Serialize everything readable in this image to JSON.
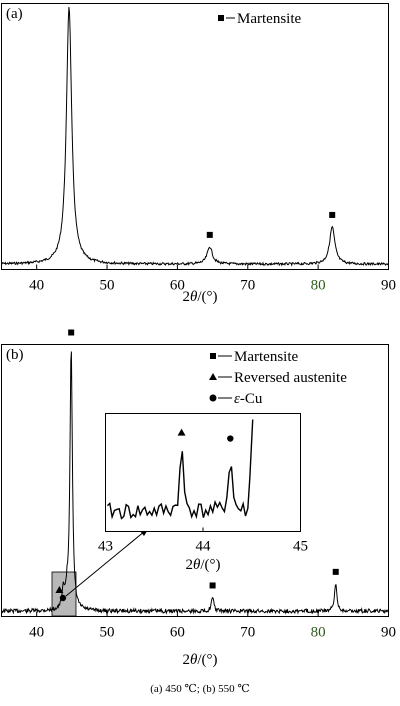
{
  "caption": "(a)  450 ℃; (b) 550 ℃",
  "colors": {
    "axis": "#000000",
    "green_tick": "#2e5a1c",
    "inset_box": "#b8b8b8"
  },
  "chart_data": [
    {
      "type": "line",
      "panel_label": "(a)",
      "xlabel_prefix": "2",
      "xlabel_theta": "θ",
      "xlabel_suffix": "/(°)",
      "xlim": [
        35,
        90
      ],
      "x_ticks": [
        40,
        50,
        60,
        70,
        80,
        90
      ],
      "ylim": [
        0,
        1
      ],
      "legend_position": "top-right",
      "legend": [
        {
          "marker": "square",
          "label": "Martensite"
        }
      ],
      "peaks": [
        {
          "x": 44.6,
          "height": 0.97,
          "marker": "square"
        },
        {
          "x": 64.6,
          "height": 0.065,
          "marker": "square"
        },
        {
          "x": 82.0,
          "height": 0.14,
          "marker": "square"
        }
      ],
      "baseline": 0.02
    },
    {
      "type": "line",
      "panel_label": "(b)",
      "xlabel_prefix": "2",
      "xlabel_theta": "θ",
      "xlabel_suffix": "/(°)",
      "xlim": [
        35,
        90
      ],
      "x_ticks": [
        40,
        50,
        60,
        70,
        80,
        90
      ],
      "ylim": [
        0,
        1
      ],
      "legend_position": "top-right",
      "legend": [
        {
          "marker": "square",
          "label": "Martensite"
        },
        {
          "marker": "triangle",
          "label": "Reversed austenite"
        },
        {
          "marker": "circle",
          "label_prefix": "ε",
          "label": "-Cu"
        }
      ],
      "peaks": [
        {
          "x": 44.9,
          "height": 0.98,
          "marker": "square"
        },
        {
          "x": 65.0,
          "height": 0.05,
          "marker": "square"
        },
        {
          "x": 82.5,
          "height": 0.1,
          "marker": "square"
        },
        {
          "x": 43.8,
          "height": 0.07,
          "marker": "triangle"
        },
        {
          "x": 44.3,
          "height": 0.05,
          "marker": "circle"
        }
      ],
      "baseline": 0.02,
      "inset": {
        "xlim": [
          43,
          45
        ],
        "x_ticks": [
          43,
          44,
          45
        ],
        "xlabel_prefix": "2",
        "xlabel_theta": "θ",
        "xlabel_suffix": "/(°)",
        "peaks": [
          {
            "x": 43.78,
            "height": 0.55,
            "marker": "triangle"
          },
          {
            "x": 44.28,
            "height": 0.5,
            "marker": "circle"
          }
        ]
      }
    }
  ]
}
